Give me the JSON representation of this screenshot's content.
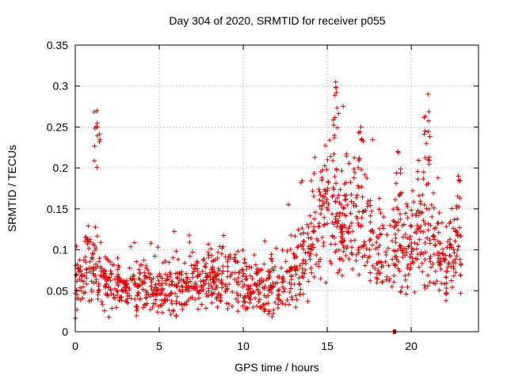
{
  "chart_data": {
    "type": "scatter",
    "title": "Day 304 of 2020, SRMTID for receiver p055",
    "xlabel": "GPS time / hours",
    "ylabel": "SRMTID / TECUs",
    "xlim": [
      0,
      24
    ],
    "ylim": [
      0,
      0.35
    ],
    "x_ticks": [
      0,
      5,
      10,
      15,
      20
    ],
    "x_tick_labels": [
      "0",
      "5",
      "10",
      "15",
      "20"
    ],
    "y_ticks": [
      0,
      0.05,
      0.1,
      0.15,
      0.2,
      0.25,
      0.3,
      0.35
    ],
    "y_tick_labels": [
      "0",
      "0.05",
      "0.1",
      "0.15",
      "0.2",
      "0.25",
      "0.3",
      "0.35"
    ],
    "grid": true,
    "marker": "+",
    "color": "#dd0000",
    "envelope_hourly": {
      "hours": [
        0,
        1,
        2,
        3,
        4,
        5,
        6,
        7,
        8,
        9,
        10,
        11,
        12,
        13,
        14,
        15,
        16,
        17,
        18,
        19,
        20,
        21,
        22,
        23
      ],
      "typical": [
        0.06,
        0.08,
        0.06,
        0.05,
        0.055,
        0.05,
        0.055,
        0.06,
        0.06,
        0.07,
        0.055,
        0.05,
        0.05,
        0.07,
        0.11,
        0.15,
        0.13,
        0.14,
        0.09,
        0.1,
        0.11,
        0.12,
        0.08,
        0.1
      ],
      "spread": [
        0.025,
        0.04,
        0.025,
        0.02,
        0.025,
        0.02,
        0.025,
        0.025,
        0.025,
        0.03,
        0.025,
        0.025,
        0.025,
        0.03,
        0.045,
        0.06,
        0.05,
        0.05,
        0.035,
        0.04,
        0.045,
        0.05,
        0.035,
        0.045
      ]
    },
    "highlights": [
      {
        "x": 1.3,
        "y": 0.27
      },
      {
        "x": 15.5,
        "y": 0.305
      },
      {
        "x": 17.0,
        "y": 0.25
      },
      {
        "x": 21.0,
        "y": 0.29
      },
      {
        "x": 22.8,
        "y": 0.19
      },
      {
        "x": 19.2,
        "y": 0.22
      }
    ],
    "outlier": {
      "x": 19.0,
      "y": 0.0
    }
  }
}
